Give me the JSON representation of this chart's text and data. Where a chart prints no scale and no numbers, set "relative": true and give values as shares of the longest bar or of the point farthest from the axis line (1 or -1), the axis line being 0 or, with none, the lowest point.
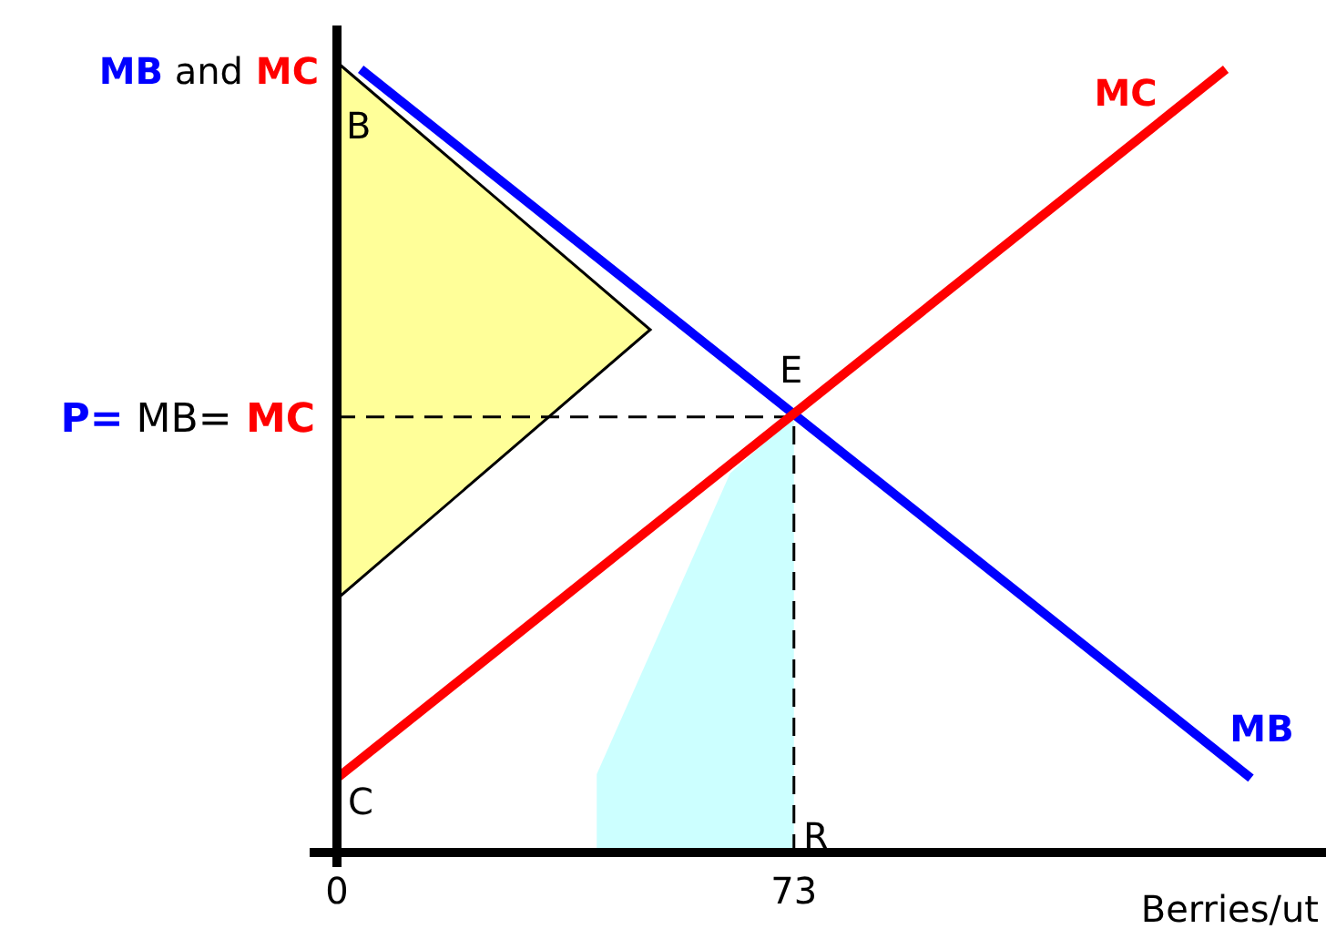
{
  "chart_data": {
    "type": "line",
    "relative": true,
    "ylabel": "MB and MC",
    "xlabel": "Berries/ut",
    "xlim": [
      0,
      158
    ],
    "xticks": [
      0,
      73
    ],
    "marker": "none",
    "line_style": "solid",
    "grid": false,
    "legend": false,
    "series": [
      {
        "name": "MB",
        "color": "#0000ff",
        "x": [
          3.8,
          146
        ],
        "values": [
          1,
          0.095
        ]
      },
      {
        "name": "MC",
        "color": "#ff0000",
        "x": [
          0,
          142
        ],
        "values": [
          0.095,
          1
        ]
      },
      {
        "type": "area",
        "color": "#ccffff",
        "x": [
          41.5,
          41.5,
          62.8,
          73
        ],
        "values": [
          0,
          0.1,
          0.484,
          0.556
        ]
      }
    ],
    "ref_lines": [
      {
        "axis": "y",
        "value": 0.556,
        "label": "P= MB= MC",
        "line_style": "dashed",
        "color": "#000000"
      },
      {
        "axis": "x",
        "value": 73,
        "line_style": "dashed",
        "color": "#000000"
      }
    ],
    "annotations": [
      "B",
      "E",
      "C",
      "R"
    ]
  }
}
